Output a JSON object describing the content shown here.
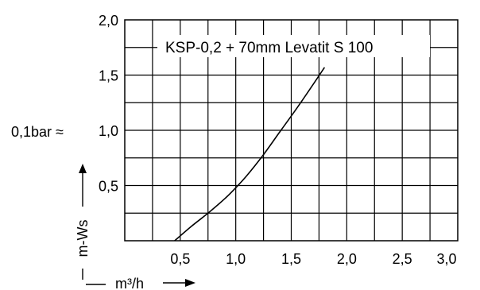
{
  "chart_data": {
    "type": "line",
    "title": "KSP-0,2 + 70mm Levatit S 100",
    "xlabel": "m³/h",
    "ylabel": "m-Ws",
    "y_annotation": "0,1bar ≈",
    "xlim": [
      0,
      3.0
    ],
    "ylim": [
      0,
      2.0
    ],
    "x_ticks": [
      "0,5",
      "1,0",
      "1,5",
      "2,0",
      "2,5",
      "3,0"
    ],
    "y_ticks": [
      "0,5",
      "1,0",
      "1,5",
      "2,0"
    ],
    "grid": true,
    "series": [
      {
        "x": [
          0.45,
          0.6,
          0.75,
          0.9,
          1.0,
          1.1,
          1.25,
          1.4,
          1.55,
          1.68,
          1.8
        ],
        "values": [
          0.0,
          0.13,
          0.25,
          0.38,
          0.48,
          0.59,
          0.78,
          0.99,
          1.2,
          1.39,
          1.57
        ]
      }
    ]
  }
}
